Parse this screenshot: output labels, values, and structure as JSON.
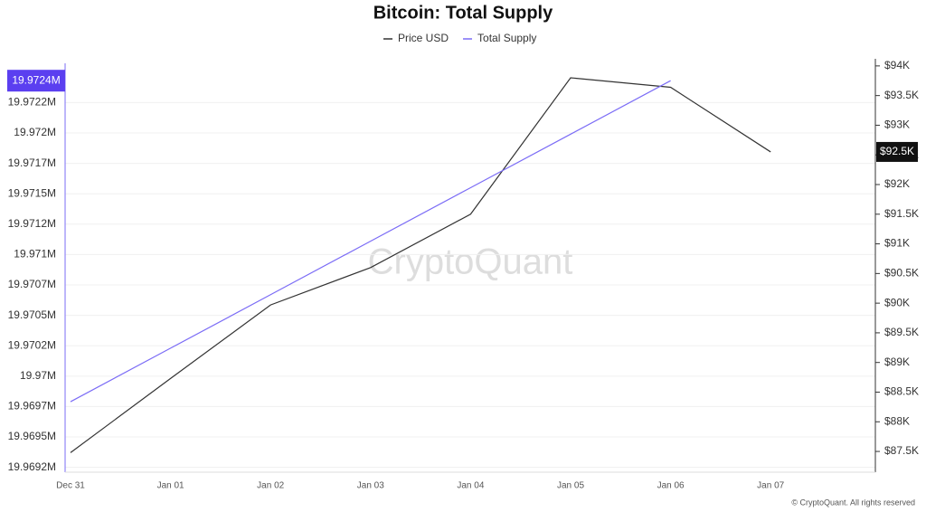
{
  "chart_data": {
    "type": "line",
    "title": "Bitcoin: Total Supply",
    "watermark": "CryptoQuant",
    "footer": "© CryptoQuant. All rights reserved",
    "categories": [
      "Dec 31",
      "Jan 01",
      "Jan 02",
      "Jan 03",
      "Jan 04",
      "Jan 05",
      "Jan 06",
      "Jan 07"
    ],
    "series": [
      {
        "name": "Price USD",
        "color": "#333333",
        "axis": "y2",
        "values": [
          87.48,
          88.73,
          89.97,
          90.6,
          91.5,
          93.8,
          93.64,
          92.55
        ],
        "value_labels": [
          null,
          null,
          null,
          null,
          null,
          null,
          null,
          "$92.5K"
        ]
      },
      {
        "name": "Total Supply",
        "color": "#7b6cf6",
        "axis": "y",
        "values": [
          19.96979,
          19.97023,
          19.97067,
          19.97111,
          19.97155,
          19.97199,
          19.97243,
          null
        ],
        "value_labels": [
          null,
          null,
          null,
          null,
          null,
          null,
          "19.9724M",
          null
        ]
      }
    ],
    "ylim": [
      19.96921,
      19.97261
    ],
    "yticks": [
      {
        "value": 19.96925,
        "label": "19.9692M"
      },
      {
        "value": 19.9695,
        "label": "19.9695M"
      },
      {
        "value": 19.96975,
        "label": "19.9697M"
      },
      {
        "value": 19.97,
        "label": "19.97M"
      },
      {
        "value": 19.97025,
        "label": "19.9702M"
      },
      {
        "value": 19.9705,
        "label": "19.9705M"
      },
      {
        "value": 19.97075,
        "label": "19.9707M"
      },
      {
        "value": 19.971,
        "label": "19.971M"
      },
      {
        "value": 19.97125,
        "label": "19.9712M"
      },
      {
        "value": 19.9715,
        "label": "19.9715M"
      },
      {
        "value": 19.97175,
        "label": "19.9717M"
      },
      {
        "value": 19.972,
        "label": "19.972M"
      },
      {
        "value": 19.97225,
        "label": "19.9722M"
      }
    ],
    "y2lim": [
      87.15,
      94.12
    ],
    "y2ticks": [
      {
        "value": 87.5,
        "label": "$87.5K"
      },
      {
        "value": 88,
        "label": "$88K"
      },
      {
        "value": 88.5,
        "label": "$88.5K"
      },
      {
        "value": 89,
        "label": "$89K"
      },
      {
        "value": 89.5,
        "label": "$89.5K"
      },
      {
        "value": 90,
        "label": "$90K"
      },
      {
        "value": 90.5,
        "label": "$90.5K"
      },
      {
        "value": 91,
        "label": "$91K"
      },
      {
        "value": 91.5,
        "label": "$91.5K"
      },
      {
        "value": 92,
        "label": "$92K"
      },
      {
        "value": 92.5,
        "label": "$92.5K"
      },
      {
        "value": 93,
        "label": "$93K"
      },
      {
        "value": 93.5,
        "label": "$93.5K"
      },
      {
        "value": 94,
        "label": "$94K"
      }
    ],
    "grid": true
  }
}
